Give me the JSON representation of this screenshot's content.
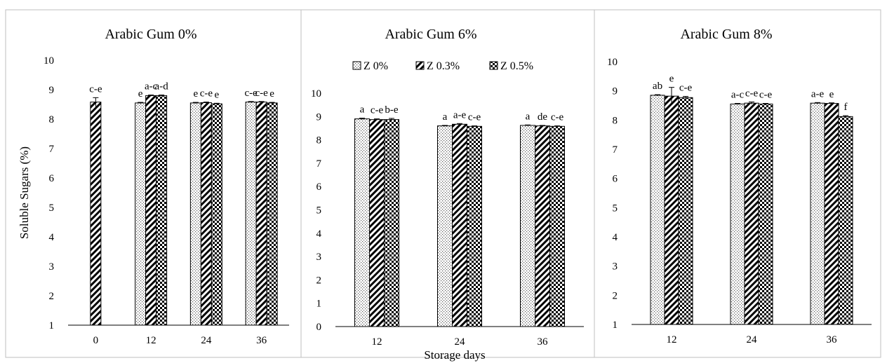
{
  "chart_data": [
    {
      "type": "bar",
      "title": "Arabic Gum 0%",
      "ylabel": "Soluble Sugars (%)",
      "ylim": [
        1,
        10
      ],
      "yticks": [
        1,
        2,
        3,
        4,
        5,
        6,
        7,
        8,
        9,
        10
      ],
      "categories": [
        "0",
        "12",
        "24",
        "36"
      ],
      "series": [
        {
          "name": "Z 0%",
          "values": [
            null,
            8.55,
            8.55,
            8.58
          ],
          "letters": [
            "",
            "e",
            "e",
            "c-e"
          ],
          "errors": [
            null,
            0.02,
            0.02,
            0.02
          ]
        },
        {
          "name": "Z 0.3%",
          "values": [
            8.58,
            8.8,
            8.56,
            8.58
          ],
          "letters": [
            "c-e",
            "a-c",
            "c-e",
            "c-e"
          ],
          "errors": [
            0.15,
            0.02,
            0.02,
            0.02
          ]
        },
        {
          "name": "Z 0.5%",
          "values": [
            null,
            8.8,
            8.52,
            8.55
          ],
          "letters": [
            "",
            "a-d",
            "e",
            "e"
          ],
          "errors": [
            null,
            0.02,
            0.02,
            0.02
          ]
        }
      ]
    },
    {
      "type": "bar",
      "title": "Arabic Gum 6%",
      "ylim": [
        0,
        10
      ],
      "yticks": [
        0,
        1,
        2,
        3,
        4,
        5,
        6,
        7,
        8,
        9,
        10
      ],
      "categories": [
        "12",
        "24",
        "36"
      ],
      "series": [
        {
          "name": "Z 0%",
          "values": [
            8.9,
            8.6,
            8.62
          ],
          "letters": [
            "a",
            "a",
            "a"
          ],
          "errors": [
            0.03,
            0.02,
            0.02
          ]
        },
        {
          "name": "Z 0.3%",
          "values": [
            8.87,
            8.67,
            8.6
          ],
          "letters": [
            "c-e",
            "a-e",
            "de"
          ],
          "errors": [
            0.03,
            0.03,
            0.02
          ]
        },
        {
          "name": "Z 0.5%",
          "values": [
            8.87,
            8.58,
            8.58
          ],
          "letters": [
            "b-e",
            "c-e",
            "c-e"
          ],
          "errors": [
            0.05,
            0.02,
            0.02
          ]
        }
      ]
    },
    {
      "type": "bar",
      "title": "Arabic Gum 8%",
      "ylim": [
        1,
        10
      ],
      "yticks": [
        1,
        2,
        3,
        4,
        5,
        6,
        7,
        8,
        9,
        10
      ],
      "categories": [
        "12",
        "24",
        "36"
      ],
      "series": [
        {
          "name": "Z 0%",
          "values": [
            8.85,
            8.55,
            8.58
          ],
          "letters": [
            "ab",
            "a-c",
            "a-e"
          ],
          "errors": [
            0.02,
            0.02,
            0.02
          ]
        },
        {
          "name": "Z 0.3%",
          "values": [
            8.82,
            8.58,
            8.57
          ],
          "letters": [
            "e",
            "c-e",
            "e"
          ],
          "errors": [
            0.3,
            0.04,
            0.02
          ]
        },
        {
          "name": "Z 0.5%",
          "values": [
            8.77,
            8.55,
            8.12
          ],
          "letters": [
            "c-e",
            "c-e",
            "f"
          ],
          "errors": [
            0.04,
            0.02,
            0.03
          ]
        }
      ]
    }
  ],
  "xlabel": "Storage days",
  "legend": {
    "placement": "top-center",
    "items": [
      {
        "label": "Z 0%",
        "pattern": "dots"
      },
      {
        "label": "Z 0.3%",
        "pattern": "diagonal"
      },
      {
        "label": "Z 0.5%",
        "pattern": "checker"
      }
    ]
  }
}
